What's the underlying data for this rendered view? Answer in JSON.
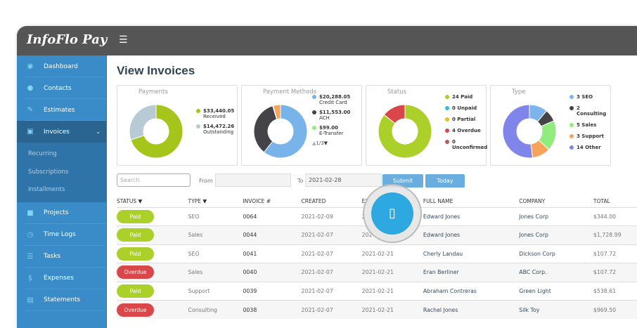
{
  "app": {
    "logo": "InfoFlo Pay",
    "menu_icon": "hamburger-icon"
  },
  "sidebar": {
    "items": [
      {
        "label": "Dashboard",
        "icon": "dashboard-icon",
        "glyph": "◉"
      },
      {
        "label": "Contacts",
        "icon": "user-icon",
        "glyph": "●"
      },
      {
        "label": "Estimates",
        "icon": "pencil-icon",
        "glyph": "✎"
      },
      {
        "label": "Invoices",
        "icon": "money-icon",
        "glyph": "▣",
        "active": true
      },
      {
        "label": "Projects",
        "icon": "briefcase-icon",
        "glyph": "■"
      },
      {
        "label": "Time Logs",
        "icon": "clock-icon",
        "glyph": "◷"
      },
      {
        "label": "Tasks",
        "icon": "list-icon",
        "glyph": "☰"
      },
      {
        "label": "Expenses",
        "icon": "dollar-icon",
        "glyph": "$"
      },
      {
        "label": "Statements",
        "icon": "document-icon",
        "glyph": "▤"
      }
    ],
    "submenu": [
      "Recurring",
      "Subscriptions",
      "Installments"
    ]
  },
  "page": {
    "title": "View Invoices"
  },
  "charts": [
    {
      "title": "Payments",
      "slices": [
        {
          "value": 33440.05,
          "amount": "$33,440.05",
          "label": "Received",
          "color": "#a5c51a"
        },
        {
          "value": 14472.26,
          "amount": "$14,472.26",
          "label": "Outstanding",
          "color": "#b8cad4"
        }
      ]
    },
    {
      "title": "Payment Methods",
      "pager": "1/3",
      "slices": [
        {
          "value": 20288.05,
          "amount": "$20,288.05",
          "label": "Credit Card",
          "color": "#78b3ea"
        },
        {
          "value": 11553.0,
          "amount": "$11,553.00",
          "label": "ACH",
          "color": "#434348"
        },
        {
          "value": 99.0,
          "amount": "$99.00",
          "label": "E-Transfer",
          "color": "#90ed7d"
        },
        {
          "value": 1500,
          "color": "#f7a35c"
        }
      ]
    },
    {
      "title": "Status",
      "slices": [
        {
          "value": 24,
          "label": "24 Paid",
          "color": "#acd02a"
        },
        {
          "value": 0,
          "label": "0 Unpaid",
          "color": "#2bc0e4"
        },
        {
          "value": 0,
          "label": "0 Partial",
          "color": "#e4c21b"
        },
        {
          "value": 4,
          "label": "4 Overdue",
          "color": "#d9474a"
        },
        {
          "value": 0,
          "label": "0 Unconfirmed",
          "color": "#b55a5a"
        }
      ]
    },
    {
      "title": "Type",
      "slices": [
        {
          "value": 3,
          "label": "3 SEO",
          "color": "#7cb5ec"
        },
        {
          "value": 2,
          "label": "2 Consulting",
          "color": "#434348"
        },
        {
          "value": 5,
          "label": "5 Sales",
          "color": "#90ed7d"
        },
        {
          "value": 3,
          "label": "3 Support",
          "color": "#f7a35c"
        },
        {
          "value": 14,
          "label": "14 Other",
          "color": "#8085e9"
        }
      ]
    }
  ],
  "filters": {
    "search_placeholder": "Search",
    "from_label": "From",
    "from_value": "",
    "to_label": "To",
    "to_value": "2021-02-28",
    "submit": "Submit",
    "today": "Today"
  },
  "table": {
    "headers": [
      "STATUS ▼",
      "TYPE ▼",
      "INVOICE #",
      "CREATED",
      "EX",
      "FULL NAME",
      "COMPANY",
      "TOTAL"
    ],
    "rows": [
      [
        "Paid",
        "SEO",
        "0064",
        "2021-02-09",
        "2",
        "Edward Jones",
        "Jones Corp",
        "$344.00"
      ],
      [
        "Paid",
        "Sales",
        "0044",
        "2021-02-07",
        "202",
        "Edward Jones",
        "Jones Corp",
        "$1,728.99"
      ],
      [
        "Paid",
        "SEO",
        "0041",
        "2021-02-07",
        "2021-02-21",
        "Cherly Landau",
        "Dickson Corp",
        "$107.72"
      ],
      [
        "Overdue",
        "Sales",
        "0040",
        "2021-02-07",
        "2021-02-21",
        "Eran Berliner",
        "ABC Corp.",
        "$107.72"
      ],
      [
        "Paid",
        "Support",
        "0039",
        "2021-02-07",
        "2021-02-21",
        "Abraham Contreras",
        "Green Light",
        "$538.61"
      ],
      [
        "Overdue",
        "Consulting",
        "0038",
        "2021-02-07",
        "2021-02-21",
        "Rachel Jones",
        "Silk Toy",
        "$969.50"
      ]
    ]
  },
  "status_colors": {
    "Paid": "#acd02a",
    "Overdue": "#d9474a"
  },
  "overlay": {
    "icon": "touch-indicator-icon",
    "glyph": "▯"
  }
}
